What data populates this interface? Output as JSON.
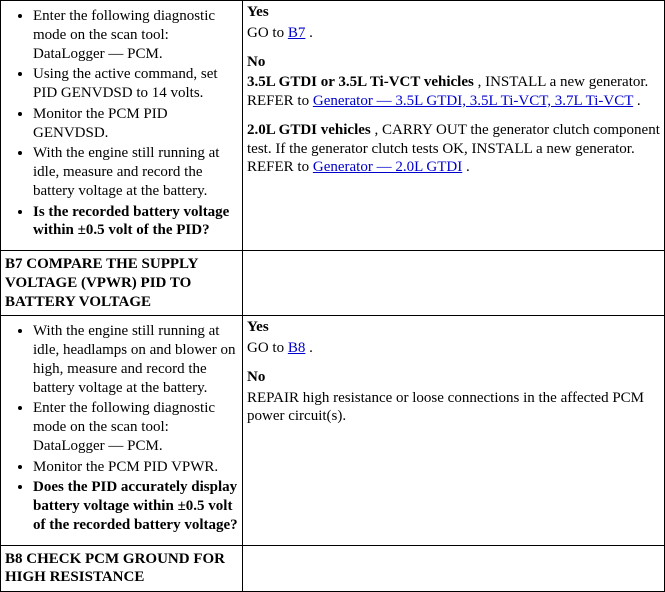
{
  "row1": {
    "left": {
      "items": [
        "Enter the following diagnostic mode on the scan tool: DataLogger — PCM.",
        "Using the active command, set PID GENVDSD to 14 volts.",
        "Monitor the PCM PID GENVDSD.",
        "With the engine still running at idle, measure and record the battery voltage at the battery."
      ],
      "question": "Is the recorded battery voltage within ±0.5 volt of the PID?"
    },
    "right": {
      "yes_label": "Yes",
      "yes_text_pre": "GO to ",
      "yes_link": "B7",
      "yes_text_post": " .",
      "no_label": "No",
      "no_block1_bold": "3.5L GTDI or 3.5L Ti-VCT vehicles",
      "no_block1_text": " , INSTALL a new generator. REFER to ",
      "no_block1_link": "Generator — 3.5L GTDI, 3.5L Ti-VCT, 3.7L Ti-VCT",
      "no_block1_post": " .",
      "no_block2_bold": "2.0L GTDI vehicles",
      "no_block2_text": " , CARRY OUT the generator clutch component test. If the generator clutch tests OK, INSTALL a new generator. REFER to ",
      "no_block2_link": "Generator — 2.0L GTDI",
      "no_block2_post": " ."
    }
  },
  "row2": {
    "title": "B7 COMPARE THE SUPPLY VOLTAGE (VPWR) PID TO BATTERY VOLTAGE"
  },
  "row3": {
    "left": {
      "items": [
        "With the engine still running at idle, headlamps on and blower on high, measure and record the battery voltage at the battery.",
        "Enter the following diagnostic mode on the scan tool: DataLogger — PCM.",
        "Monitor the PCM PID VPWR."
      ],
      "question": "Does the PID accurately display battery voltage within ±0.5 volt of the recorded battery voltage?"
    },
    "right": {
      "yes_label": "Yes",
      "yes_text_pre": "GO to ",
      "yes_link": "B8",
      "yes_text_post": " .",
      "no_label": "No",
      "no_text": "REPAIR high resistance or loose connections in the affected PCM power circuit(s)."
    }
  },
  "row4": {
    "title": "B8 CHECK PCM GROUND FOR HIGH RESISTANCE"
  }
}
